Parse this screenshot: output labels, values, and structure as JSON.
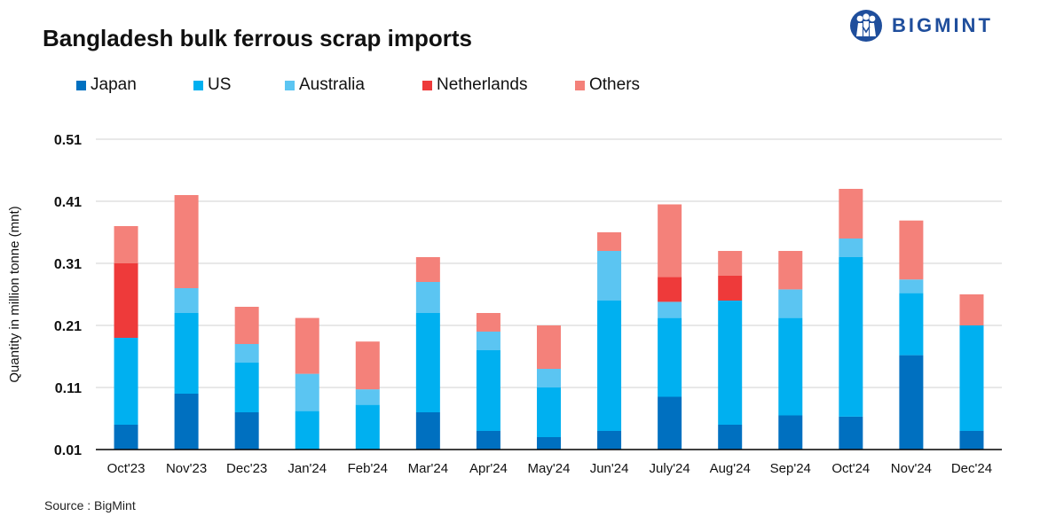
{
  "header": {
    "title": "Bangladesh bulk ferrous scrap imports",
    "brand": "BIGMINT"
  },
  "footer": {
    "source": "Source : BigMint"
  },
  "chart_data": {
    "type": "bar",
    "stacked": true,
    "title": "Bangladesh bulk ferrous scrap imports",
    "xlabel": "",
    "ylabel": "Quantity in million tonne (mnt)",
    "ylim": [
      0.01,
      0.51
    ],
    "yticks": [
      "0.01",
      "0.11",
      "0.21",
      "0.31",
      "0.41",
      "0.51"
    ],
    "ytick_values": [
      0.01,
      0.11,
      0.21,
      0.31,
      0.41,
      0.51
    ],
    "grid": true,
    "legend_position": "top-left",
    "categories": [
      "Oct'23",
      "Nov'23",
      "Dec'23",
      "Jan'24",
      "Feb'24",
      "Mar'24",
      "Apr'24",
      "May'24",
      "Jun'24",
      "July'24",
      "Aug'24",
      "Sep'24",
      "Oct'24",
      "Nov'24",
      "Dec'24"
    ],
    "series": [
      {
        "name": "Japan",
        "color": "#0070c0",
        "values": [
          0.04,
          0.09,
          0.06,
          0.0,
          0.0,
          0.06,
          0.03,
          0.02,
          0.03,
          0.085,
          0.04,
          0.055,
          0.053,
          0.152,
          0.03
        ]
      },
      {
        "name": "US",
        "color": "#00b0f0",
        "values": [
          0.14,
          0.13,
          0.08,
          0.062,
          0.072,
          0.16,
          0.13,
          0.08,
          0.21,
          0.127,
          0.2,
          0.157,
          0.257,
          0.1,
          0.17
        ]
      },
      {
        "name": "Australia",
        "color": "#5bc5f2",
        "values": [
          0.0,
          0.04,
          0.03,
          0.06,
          0.025,
          0.05,
          0.03,
          0.03,
          0.08,
          0.026,
          0.0,
          0.046,
          0.03,
          0.022,
          0.0
        ]
      },
      {
        "name": "Netherlands",
        "color": "#ee3a3a",
        "values": [
          0.12,
          0.0,
          0.0,
          0.0,
          0.0,
          0.0,
          0.0,
          0.0,
          0.0,
          0.04,
          0.04,
          0.0,
          0.0,
          0.0,
          0.0
        ]
      },
      {
        "name": "Others",
        "color": "#f4817a",
        "values": [
          0.06,
          0.15,
          0.06,
          0.09,
          0.077,
          0.04,
          0.03,
          0.07,
          0.03,
          0.117,
          0.04,
          0.062,
          0.08,
          0.095,
          0.05
        ]
      }
    ]
  }
}
